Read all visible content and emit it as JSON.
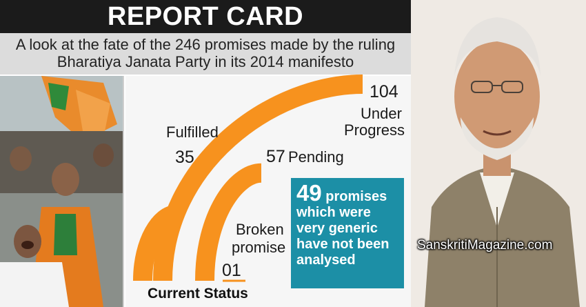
{
  "header": {
    "title": "REPORT CARD",
    "subtitle_line1": "A look at the fate of the 246 promises made by the ruling",
    "subtitle_line2": "Bharatiya Janata Party in its 2014 manifesto"
  },
  "chart_data": {
    "type": "bar",
    "categories": [
      "Under Progress",
      "Fulfilled",
      "Pending",
      "Broken promise"
    ],
    "values": [
      104,
      35,
      57,
      1
    ],
    "value_labels": [
      "104",
      "35",
      "57",
      "01"
    ],
    "category_labels": {
      "under_progress_line1": "Under",
      "under_progress_line2": "Progress",
      "fulfilled": "Fulfilled",
      "pending": "Pending",
      "broken_line1": "Broken",
      "broken_line2": "promise"
    },
    "xlabel": "Current Status",
    "colors": {
      "bar": "#f7921e",
      "note_box": "#1c8fa6"
    }
  },
  "note": {
    "number": "49",
    "word": "promises",
    "line2": "which were",
    "line3": "very generic",
    "line4": "have not been",
    "line5": "analysed"
  },
  "watermark": "SanskritiMagazine.com",
  "icons": [
    "crowd-photo",
    "portrait-photo"
  ]
}
